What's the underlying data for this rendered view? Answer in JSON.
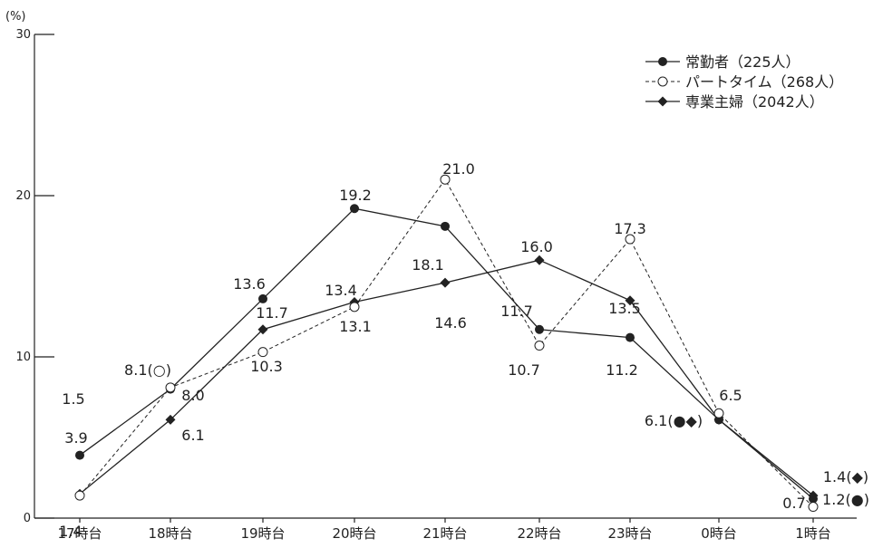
{
  "chart_data": {
    "type": "line",
    "unit_label": "(%)",
    "categories": [
      "17時台",
      "18時台",
      "19時台",
      "20時台",
      "21時台",
      "22時台",
      "23時台",
      "0時台",
      "1時台"
    ],
    "ylim": [
      0,
      30
    ],
    "yticks": [
      "0",
      "10",
      "20",
      "30"
    ],
    "grid": false,
    "legend_position": "top-right",
    "series": [
      {
        "name": "常勤者（225人）",
        "marker": "filled-circle",
        "line": "solid",
        "color": "#222222",
        "values": [
          3.9,
          8.0,
          13.6,
          19.2,
          18.1,
          11.7,
          11.2,
          6.1,
          1.2
        ]
      },
      {
        "name": "パートタイム（268人）",
        "marker": "open-circle",
        "line": "dashed",
        "color": "#222222",
        "values": [
          1.4,
          8.1,
          10.3,
          13.1,
          21.0,
          10.7,
          17.3,
          6.5,
          0.7
        ]
      },
      {
        "name": "専業主婦（2042人）",
        "marker": "filled-diamond",
        "line": "solid",
        "color": "#222222",
        "values": [
          1.5,
          6.1,
          11.7,
          13.4,
          14.6,
          16.0,
          13.5,
          6.1,
          1.4
        ]
      }
    ],
    "point_labels": [
      "3.9",
      "1.5",
      "1.4",
      "8.1(○)",
      "8.0",
      "6.1",
      "13.6",
      "11.7",
      "10.3",
      "19.2",
      "13.4",
      "13.1",
      "21.0",
      "18.1",
      "14.6",
      "16.0",
      "11.7",
      "10.7",
      "17.3",
      "13.5",
      "11.2",
      "6.5",
      "6.1(●◆)",
      "1.4(◆)",
      "1.2(●)",
      "0.7"
    ]
  }
}
